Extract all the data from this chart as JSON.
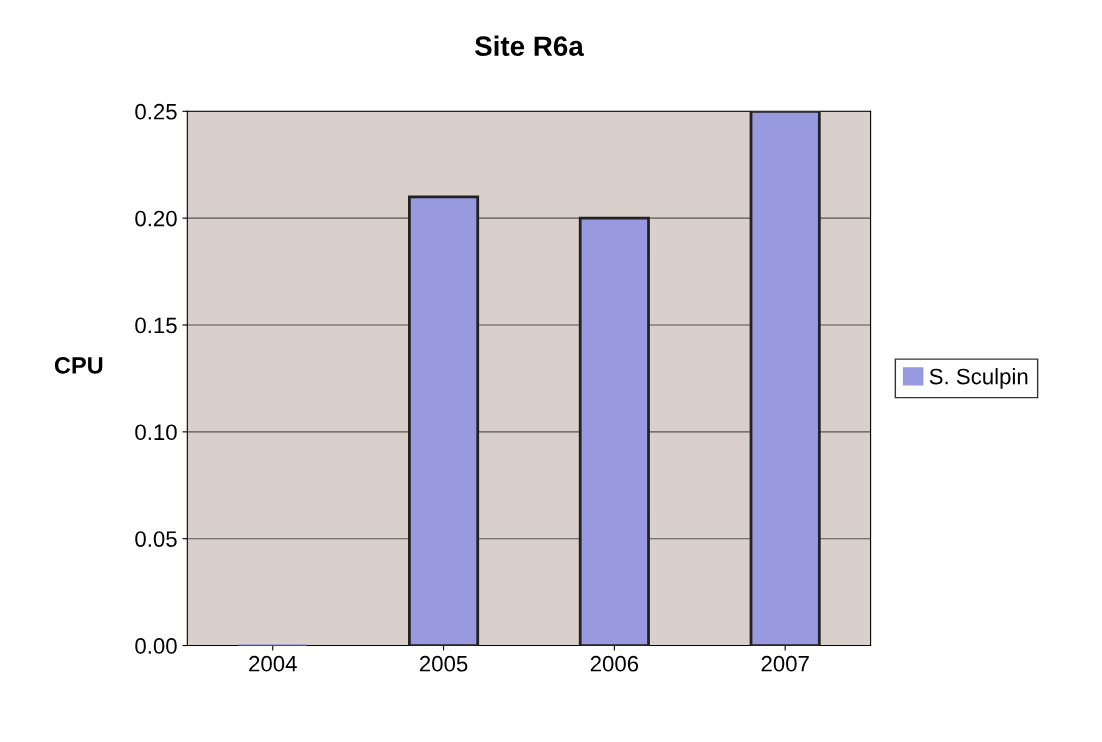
{
  "chart_data": {
    "type": "bar",
    "title": "Site R6a",
    "ylabel": "CPU",
    "categories": [
      "2004",
      "2005",
      "2006",
      "2007"
    ],
    "series": [
      {
        "name": "S. Sculpin",
        "color": "#9999e0",
        "values": [
          0,
          0.21,
          0.2,
          0.25
        ]
      }
    ],
    "ylim": [
      0,
      0.25
    ],
    "yticks": [
      {
        "value": 0,
        "label": "0.00"
      },
      0.05,
      {
        "value": 0.1,
        "label": "0.10"
      },
      0.15,
      {
        "value": 0.2,
        "label": "0.20"
      },
      0.25
    ],
    "grid": "y",
    "legend": "right"
  }
}
